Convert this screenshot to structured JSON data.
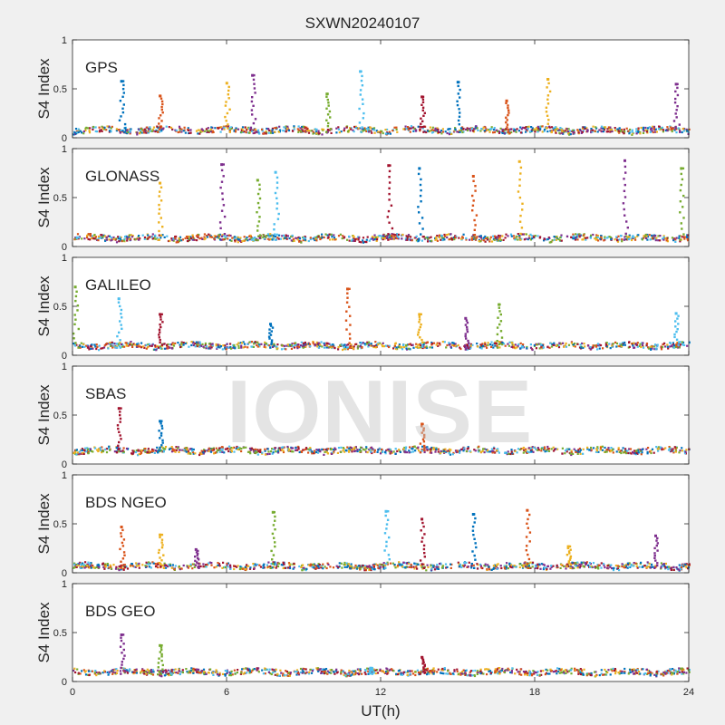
{
  "figure": {
    "title": "SXWN20240107",
    "xlabel": "UT(h)",
    "watermark": "IONISE"
  },
  "chart_data": [
    {
      "type": "scatter",
      "panel": "GPS",
      "label": "GPS",
      "ylabel": "S4 Index",
      "xlim": [
        0,
        24
      ],
      "ylim": [
        0,
        1
      ],
      "yticks": [
        0,
        0.5,
        1
      ],
      "xticks": [],
      "baseline": 0.06,
      "spikes": [
        {
          "x": 1.9,
          "y": 0.58
        },
        {
          "x": 3.4,
          "y": 0.43
        },
        {
          "x": 6.0,
          "y": 0.56
        },
        {
          "x": 7.0,
          "y": 0.64
        },
        {
          "x": 9.9,
          "y": 0.45
        },
        {
          "x": 11.2,
          "y": 0.68
        },
        {
          "x": 13.6,
          "y": 0.42
        },
        {
          "x": 15.0,
          "y": 0.57
        },
        {
          "x": 16.9,
          "y": 0.38
        },
        {
          "x": 18.5,
          "y": 0.6
        },
        {
          "x": 23.5,
          "y": 0.55
        }
      ]
    },
    {
      "type": "scatter",
      "panel": "GLONASS",
      "label": "GLONASS",
      "ylabel": "S4 Index",
      "xlim": [
        0,
        24
      ],
      "ylim": [
        0,
        1
      ],
      "yticks": [
        0,
        0.5,
        1
      ],
      "xticks": [],
      "baseline": 0.07,
      "spikes": [
        {
          "x": 3.4,
          "y": 0.65
        },
        {
          "x": 5.8,
          "y": 0.84
        },
        {
          "x": 7.2,
          "y": 0.68
        },
        {
          "x": 7.9,
          "y": 0.76
        },
        {
          "x": 12.3,
          "y": 0.83
        },
        {
          "x": 13.5,
          "y": 0.8
        },
        {
          "x": 15.6,
          "y": 0.72
        },
        {
          "x": 17.4,
          "y": 0.87
        },
        {
          "x": 21.5,
          "y": 0.88
        },
        {
          "x": 23.7,
          "y": 0.8
        }
      ]
    },
    {
      "type": "scatter",
      "panel": "GALILEO",
      "label": "GALILEO",
      "ylabel": "S4 Index",
      "xlim": [
        0,
        24
      ],
      "ylim": [
        0,
        1
      ],
      "yticks": [
        0,
        0.5,
        1
      ],
      "xticks": [],
      "baseline": 0.08,
      "spikes": [
        {
          "x": 0.1,
          "y": 0.7
        },
        {
          "x": 1.8,
          "y": 0.58
        },
        {
          "x": 3.4,
          "y": 0.42
        },
        {
          "x": 7.7,
          "y": 0.32
        },
        {
          "x": 10.7,
          "y": 0.68
        },
        {
          "x": 13.5,
          "y": 0.42
        },
        {
          "x": 15.3,
          "y": 0.38
        },
        {
          "x": 16.6,
          "y": 0.52
        },
        {
          "x": 23.5,
          "y": 0.43
        }
      ]
    },
    {
      "type": "scatter",
      "panel": "SBAS",
      "label": "SBAS",
      "ylabel": "S4 Index",
      "xlim": [
        0,
        24
      ],
      "ylim": [
        0,
        1
      ],
      "yticks": [
        0,
        0.5,
        1
      ],
      "xticks": [],
      "baseline": 0.12,
      "spikes": [
        {
          "x": 1.8,
          "y": 0.57
        },
        {
          "x": 3.4,
          "y": 0.44
        },
        {
          "x": 13.6,
          "y": 0.41
        }
      ]
    },
    {
      "type": "scatter",
      "panel": "BDS NGEO",
      "label": "BDS NGEO",
      "ylabel": "S4 Index",
      "xlim": [
        0,
        24
      ],
      "ylim": [
        0,
        1
      ],
      "yticks": [
        0,
        0.5,
        1
      ],
      "xticks": [],
      "baseline": 0.05,
      "spikes": [
        {
          "x": 1.9,
          "y": 0.47
        },
        {
          "x": 3.4,
          "y": 0.39
        },
        {
          "x": 4.8,
          "y": 0.24
        },
        {
          "x": 7.8,
          "y": 0.62
        },
        {
          "x": 12.2,
          "y": 0.63
        },
        {
          "x": 13.6,
          "y": 0.55
        },
        {
          "x": 15.6,
          "y": 0.6
        },
        {
          "x": 17.7,
          "y": 0.64
        },
        {
          "x": 19.3,
          "y": 0.27
        },
        {
          "x": 22.7,
          "y": 0.38
        }
      ]
    },
    {
      "type": "scatter",
      "panel": "BDS GEO",
      "label": "BDS GEO",
      "ylabel": "S4 Index",
      "xlim": [
        0,
        24
      ],
      "ylim": [
        0,
        1
      ],
      "yticks": [
        0,
        0.5,
        1
      ],
      "xticks": [
        0,
        6,
        12,
        18,
        24
      ],
      "baseline": 0.08,
      "spikes": [
        {
          "x": 1.9,
          "y": 0.48
        },
        {
          "x": 3.4,
          "y": 0.37
        },
        {
          "x": 11.6,
          "y": 0.14
        },
        {
          "x": 13.6,
          "y": 0.25
        }
      ]
    }
  ],
  "colors": {
    "blue": "#0072BD",
    "orange": "#D95319",
    "yellow": "#EDB120",
    "purple": "#7E2F8E",
    "green": "#77AC30",
    "cyan": "#4DBEEE",
    "red": "#A2142F",
    "axes_bg": "#ffffff",
    "figure_bg": "#f0f0f0"
  }
}
